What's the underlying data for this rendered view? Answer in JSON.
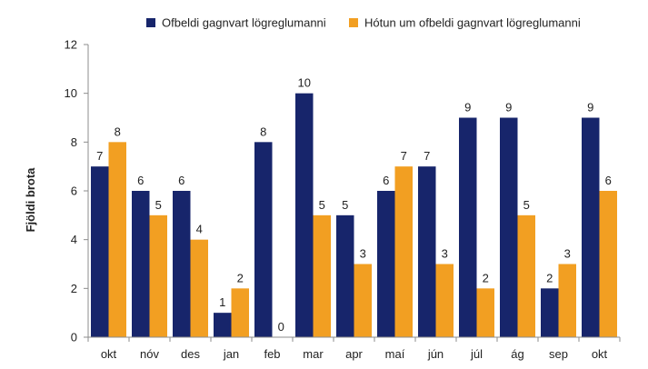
{
  "chart_data": {
    "type": "bar",
    "title": "",
    "xlabel": "",
    "ylabel": "Fjöldi brota",
    "ylim": [
      0,
      12
    ],
    "yticks": [
      0,
      2,
      4,
      6,
      8,
      10,
      12
    ],
    "grid": false,
    "legend_position": "top",
    "categories": [
      "okt",
      "nóv",
      "des",
      "jan",
      "feb",
      "mar",
      "apr",
      "maí",
      "jún",
      "júl",
      "ág",
      "sep",
      "okt"
    ],
    "series": [
      {
        "name": "Ofbeldi gagnvart lögreglumanni",
        "color": "#17256b",
        "values": [
          7,
          6,
          6,
          1,
          8,
          10,
          5,
          6,
          7,
          9,
          9,
          2,
          9
        ]
      },
      {
        "name": "Hótun um ofbeldi gagnvart lögreglumanni",
        "color": "#f29f22",
        "values": [
          8,
          5,
          4,
          2,
          0,
          5,
          3,
          7,
          3,
          2,
          5,
          3,
          6
        ]
      }
    ]
  }
}
